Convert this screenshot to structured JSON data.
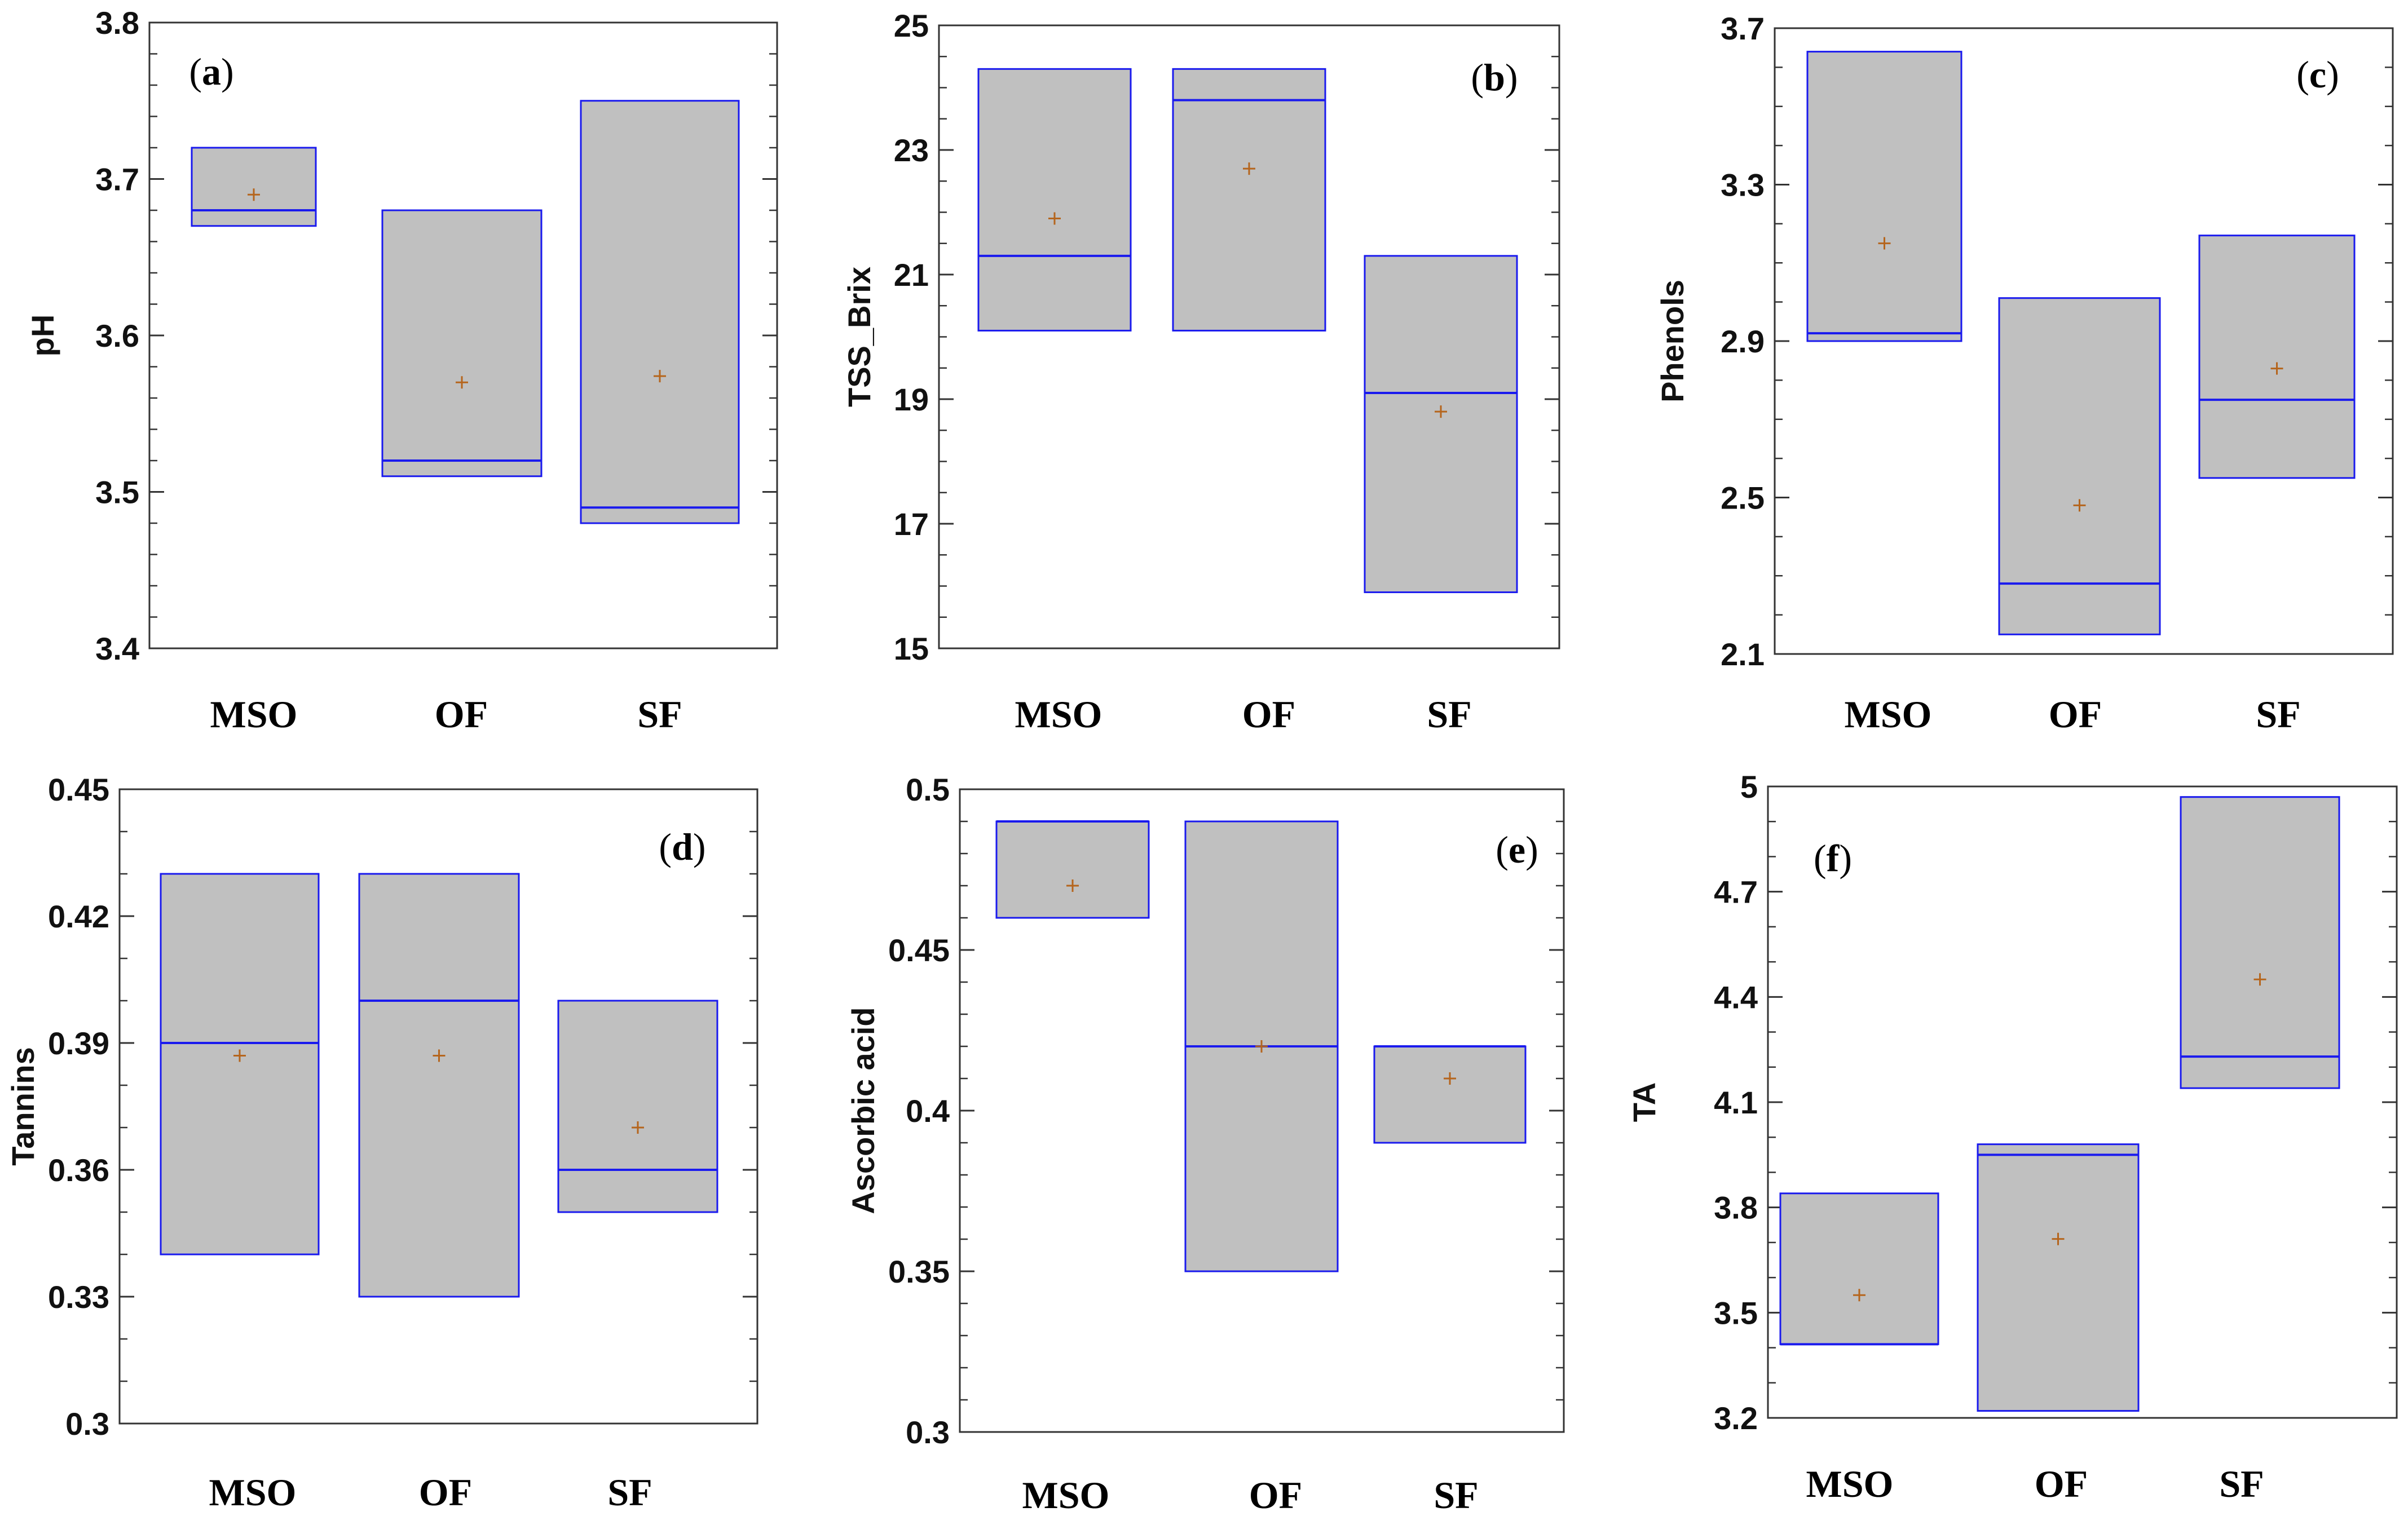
{
  "chart_data": [
    {
      "type": "box",
      "panel_label": "a",
      "ylabel": "pH",
      "ylim": [
        3.4,
        3.8
      ],
      "yticks": [
        3.4,
        3.5,
        3.6,
        3.7,
        3.8
      ],
      "ytick_labels": [
        "3.4",
        "3.5",
        "3.6",
        "3.7",
        "3.8"
      ],
      "minor_ticks_per_interval": 4,
      "categories": [
        "MSO",
        "OF",
        "SF"
      ],
      "boxes": [
        {
          "low": 3.67,
          "high": 3.72,
          "median": 3.68,
          "mean": 3.69
        },
        {
          "low": 3.51,
          "high": 3.68,
          "median": 3.52,
          "mean": 3.57
        },
        {
          "low": 3.48,
          "high": 3.75,
          "median": 3.49,
          "mean": 3.574
        }
      ]
    },
    {
      "type": "box",
      "panel_label": "b",
      "ylabel": "TSS_Brix",
      "ylim": [
        15,
        25
      ],
      "yticks": [
        15,
        17,
        19,
        21,
        23,
        25
      ],
      "ytick_labels": [
        "15",
        "17",
        "19",
        "21",
        "23",
        "25"
      ],
      "minor_ticks_per_interval": 3,
      "categories": [
        "MSO",
        "OF",
        "SF"
      ],
      "boxes": [
        {
          "low": 20.1,
          "high": 24.3,
          "median": 21.3,
          "mean": 21.9
        },
        {
          "low": 20.1,
          "high": 24.3,
          "median": 23.8,
          "mean": 22.7
        },
        {
          "low": 15.9,
          "high": 21.3,
          "median": 19.1,
          "mean": 18.8
        }
      ]
    },
    {
      "type": "box",
      "panel_label": "c",
      "ylabel": "Phenols",
      "ylim": [
        2.1,
        3.7
      ],
      "yticks": [
        2.1,
        2.5,
        2.9,
        3.3,
        3.7
      ],
      "ytick_labels": [
        "2.1",
        "2.5",
        "2.9",
        "3.3",
        "3.7"
      ],
      "minor_ticks_per_interval": 3,
      "categories": [
        "MSO",
        "OF",
        "SF"
      ],
      "boxes": [
        {
          "low": 2.9,
          "high": 3.64,
          "median": 2.92,
          "mean": 3.15
        },
        {
          "low": 2.15,
          "high": 3.01,
          "median": 2.28,
          "mean": 2.48
        },
        {
          "low": 2.55,
          "high": 3.17,
          "median": 2.75,
          "mean": 2.83
        }
      ]
    },
    {
      "type": "box",
      "panel_label": "d",
      "ylabel": "Tannins",
      "ylim": [
        0.3,
        0.45
      ],
      "yticks": [
        0.3,
        0.33,
        0.36,
        0.39,
        0.42,
        0.45
      ],
      "ytick_labels": [
        "0.3",
        "0.33",
        "0.36",
        "0.39",
        "0.42",
        "0.45"
      ],
      "minor_ticks_per_interval": 2,
      "categories": [
        "MSO",
        "OF",
        "SF"
      ],
      "boxes": [
        {
          "low": 0.34,
          "high": 0.43,
          "median": 0.39,
          "mean": 0.387
        },
        {
          "low": 0.33,
          "high": 0.43,
          "median": 0.4,
          "mean": 0.387
        },
        {
          "low": 0.35,
          "high": 0.4,
          "median": 0.36,
          "mean": 0.37
        }
      ]
    },
    {
      "type": "box",
      "panel_label": "e",
      "ylabel": "Ascorbic acid",
      "ylim": [
        0.3,
        0.5
      ],
      "yticks": [
        0.3,
        0.35,
        0.4,
        0.45,
        0.5
      ],
      "ytick_labels": [
        "0.3",
        "0.35",
        "0.4",
        "0.45",
        "0.5"
      ],
      "minor_ticks_per_interval": 4,
      "categories": [
        "MSO",
        "OF",
        "SF"
      ],
      "boxes": [
        {
          "low": 0.46,
          "high": 0.49,
          "median": 0.49,
          "mean": 0.47
        },
        {
          "low": 0.35,
          "high": 0.49,
          "median": 0.42,
          "mean": 0.42
        },
        {
          "low": 0.39,
          "high": 0.42,
          "median": 0.42,
          "mean": 0.41
        }
      ]
    },
    {
      "type": "box",
      "panel_label": "f",
      "ylabel": "TA",
      "ylim": [
        3.2,
        5.0
      ],
      "yticks": [
        3.2,
        3.5,
        3.8,
        4.1,
        4.4,
        4.7,
        5.0
      ],
      "ytick_labels": [
        "3.2",
        "3.5",
        "3.8",
        "4.1",
        "4.4",
        "4.7",
        "5"
      ],
      "minor_ticks_per_interval": 2,
      "categories": [
        "MSO",
        "OF",
        "SF"
      ],
      "boxes": [
        {
          "low": 3.41,
          "high": 3.84,
          "median": 3.41,
          "mean": 3.55
        },
        {
          "low": 3.22,
          "high": 3.98,
          "median": 3.95,
          "mean": 3.71
        },
        {
          "low": 4.14,
          "high": 4.97,
          "median": 4.23,
          "mean": 4.45
        }
      ]
    }
  ],
  "colors": {
    "box_fill": "#c0c0c0",
    "box_stroke": "#1a1aee",
    "mean_marker": "#b5651d",
    "axis": "#333333"
  }
}
